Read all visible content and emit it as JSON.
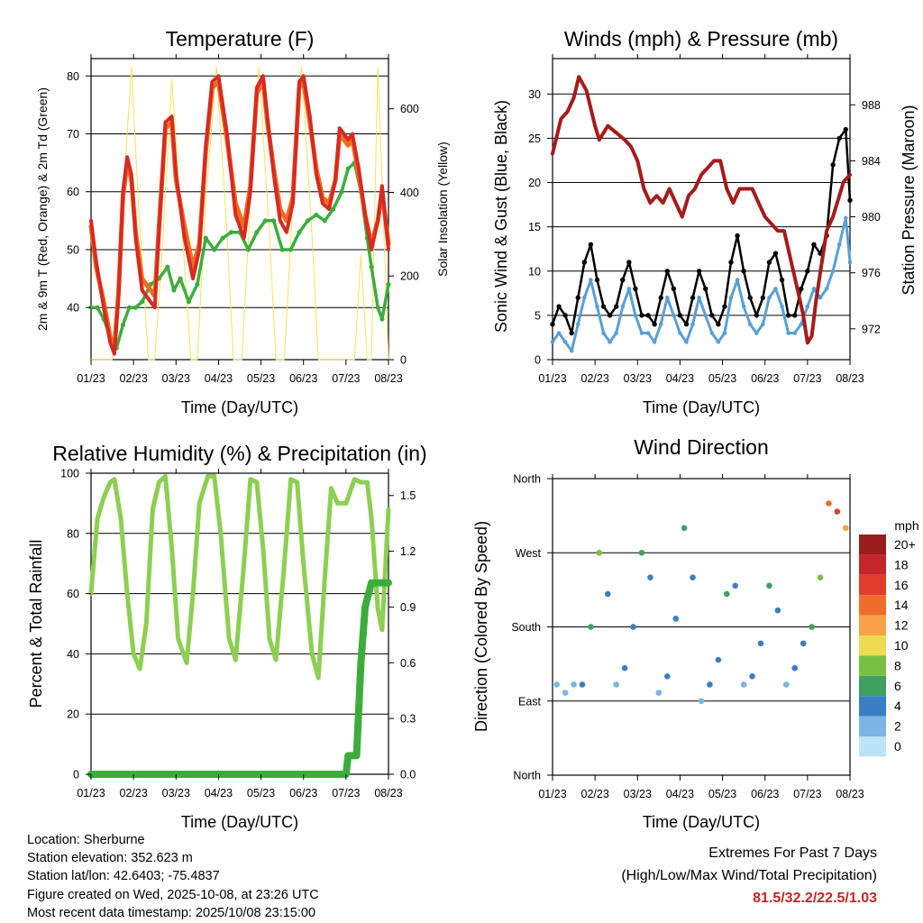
{
  "colors": {
    "temp_2m": "#d72a22",
    "temp_9m": "#f26b1d",
    "dewpoint": "#3cad3c",
    "solar": "#f2e45a",
    "wind": "#5a9fd6",
    "gust": "#000000",
    "pressure": "#a61b1b",
    "rh": "#8ccf52",
    "rain": "#3cad3c",
    "extremes": "#c0282a"
  },
  "speed_scale": {
    "title": "mph",
    "labels": [
      "20+",
      "18",
      "16",
      "14",
      "12",
      "10",
      "8",
      "6",
      "4",
      "2",
      "0"
    ],
    "colors": [
      "#9b1c1c",
      "#c4262a",
      "#e23d2b",
      "#f06c2a",
      "#f8a247",
      "#eddc52",
      "#78c043",
      "#40a062",
      "#3a7fc1",
      "#7cb5e3",
      "#bde3f6"
    ]
  },
  "info": {
    "location": "Location: Sherburne",
    "elevation": "Station elevation: 352.623 m",
    "latlon": "Station lat/lon: 42.6403; -75.4837",
    "created": "Figure created on Wed, 2025-10-08, at 23:26 UTC",
    "timestamp": "Most recent data timestamp: 2025/10/08 23:15:00"
  },
  "extremes": {
    "title": "Extremes For Past 7 Days",
    "subtitle": "(High/Low/Max Wind/Total Precipitation)",
    "values": "81.5/32.2/22.5/1.03"
  },
  "chart_data": [
    {
      "id": "temperature",
      "type": "line",
      "title": "Temperature (F)",
      "xlabel": "Time (Day/UTC)",
      "ylabel": "2m & 9m T (Red, Orange) & 2m Td (Green)",
      "ylabel_right": "Solar Insolation (Yellow)",
      "x_ticks": [
        "01/23",
        "02/23",
        "03/23",
        "04/23",
        "05/23",
        "06/23",
        "07/23",
        "08/23"
      ],
      "xlim": [
        0,
        7
      ],
      "ylim": [
        31,
        83
      ],
      "y_ticks": [
        40,
        50,
        60,
        70,
        80
      ],
      "ylim_right": [
        0,
        720
      ],
      "y_ticks_right": [
        0,
        200,
        400,
        600
      ],
      "series": [
        {
          "name": "2m T",
          "color_key": "temp_2m",
          "x": [
            0,
            0.12,
            0.3,
            0.45,
            0.55,
            0.65,
            0.75,
            0.85,
            0.95,
            1.05,
            1.2,
            1.4,
            1.5,
            1.6,
            1.75,
            1.9,
            2.0,
            2.2,
            2.4,
            2.55,
            2.7,
            2.85,
            3.0,
            3.2,
            3.4,
            3.6,
            3.75,
            3.9,
            4.05,
            4.15,
            4.3,
            4.45,
            4.6,
            4.75,
            4.9,
            5.0,
            5.15,
            5.3,
            5.45,
            5.6,
            5.75,
            5.85,
            5.95,
            6.05,
            6.15,
            6.3,
            6.45,
            6.6,
            6.75,
            6.85,
            7.0
          ],
          "values": [
            55,
            48,
            40,
            34,
            32,
            42,
            60,
            66,
            63,
            52,
            43,
            41,
            40,
            53,
            72,
            73,
            63,
            52,
            45,
            50,
            68,
            79,
            80,
            70,
            56,
            52,
            60,
            78,
            80,
            73,
            63,
            55,
            53,
            58,
            79,
            80,
            73,
            63,
            58,
            57,
            62,
            71,
            70,
            69,
            70,
            64,
            56,
            50,
            55,
            61,
            50
          ]
        },
        {
          "name": "9m T",
          "color_key": "temp_9m",
          "x": [
            0,
            0.12,
            0.3,
            0.45,
            0.55,
            0.65,
            0.75,
            0.85,
            0.95,
            1.05,
            1.2,
            1.4,
            1.5,
            1.6,
            1.75,
            1.9,
            2.0,
            2.2,
            2.4,
            2.55,
            2.7,
            2.85,
            3.0,
            3.2,
            3.4,
            3.6,
            3.75,
            3.9,
            4.05,
            4.15,
            4.3,
            4.45,
            4.6,
            4.75,
            4.9,
            5.0,
            5.15,
            5.3,
            5.45,
            5.6,
            5.75,
            5.85,
            5.95,
            6.05,
            6.15,
            6.3,
            6.45,
            6.6,
            6.75,
            6.85,
            7.0
          ],
          "values": [
            54,
            47,
            41,
            35,
            33,
            43,
            59,
            65,
            62,
            53,
            45,
            43,
            42,
            54,
            71,
            72,
            62,
            54,
            47,
            51,
            67,
            78,
            79,
            69,
            58,
            54,
            61,
            77,
            79,
            72,
            64,
            57,
            55,
            59,
            78,
            79,
            72,
            64,
            59,
            58,
            62,
            70,
            69,
            68,
            69,
            63,
            56,
            51,
            55,
            60,
            51
          ]
        },
        {
          "name": "2m Td",
          "color_key": "dewpoint",
          "x": [
            0,
            0.15,
            0.3,
            0.45,
            0.6,
            0.75,
            0.9,
            1.05,
            1.2,
            1.4,
            1.6,
            1.8,
            1.95,
            2.1,
            2.3,
            2.5,
            2.7,
            2.9,
            3.1,
            3.3,
            3.5,
            3.7,
            3.9,
            4.1,
            4.3,
            4.5,
            4.7,
            4.9,
            5.1,
            5.3,
            5.5,
            5.7,
            5.9,
            6.05,
            6.2,
            6.35,
            6.5,
            6.6,
            6.75,
            6.85,
            7.0
          ],
          "values": [
            40,
            40,
            38,
            35,
            33,
            37,
            40,
            40,
            41,
            44,
            45,
            47,
            43,
            45,
            41,
            44,
            52,
            50,
            52,
            53,
            53,
            50,
            53,
            55,
            55,
            50,
            50,
            53,
            55,
            56,
            55,
            57,
            60,
            64,
            65,
            60,
            52,
            47,
            40,
            38,
            44
          ]
        },
        {
          "name": "Solar Insolation",
          "color_key": "solar",
          "x": [
            0,
            0.5,
            0.7,
            0.95,
            1.1,
            1.35,
            1.5,
            1.7,
            1.9,
            2.15,
            2.35,
            2.5,
            2.7,
            2.95,
            3.2,
            3.35,
            3.55,
            3.75,
            3.95,
            4.2,
            4.35,
            4.55,
            4.75,
            4.95,
            5.2,
            5.35,
            5.55,
            5.75,
            5.95,
            6.2,
            6.35,
            6.5,
            6.6,
            6.75,
            7.0
          ],
          "values": [
            0,
            0,
            300,
            700,
            400,
            0,
            0,
            300,
            670,
            300,
            0,
            0,
            380,
            700,
            300,
            0,
            0,
            380,
            700,
            300,
            0,
            0,
            380,
            700,
            300,
            0,
            0,
            0,
            0,
            0,
            250,
            0,
            0,
            700,
            0
          ]
        }
      ]
    },
    {
      "id": "winds",
      "type": "scatter",
      "title": "Winds (mph) & Pressure (mb)",
      "xlabel": "Time (Day/UTC)",
      "ylabel": "Sonic Wind & Gust (Blue, Black)",
      "ylabel_right": "Station Pressure (Maroon)",
      "x_ticks": [
        "01/23",
        "02/23",
        "03/23",
        "04/23",
        "05/23",
        "06/23",
        "07/23",
        "08/23"
      ],
      "xlim": [
        0,
        7
      ],
      "ylim": [
        0,
        34
      ],
      "y_ticks": [
        0,
        5,
        10,
        15,
        20,
        25,
        30
      ],
      "ylim_right": [
        969.8,
        991.3
      ],
      "y_ticks_right": [
        972,
        976,
        980,
        984,
        988
      ],
      "series": [
        {
          "name": "Sonic Wind",
          "color_key": "wind",
          "x": [
            0,
            0.15,
            0.3,
            0.45,
            0.6,
            0.75,
            0.9,
            1.05,
            1.2,
            1.35,
            1.5,
            1.65,
            1.8,
            1.95,
            2.1,
            2.25,
            2.4,
            2.55,
            2.7,
            2.85,
            3.0,
            3.15,
            3.3,
            3.45,
            3.6,
            3.75,
            3.9,
            4.05,
            4.2,
            4.35,
            4.5,
            4.65,
            4.8,
            4.95,
            5.1,
            5.25,
            5.4,
            5.55,
            5.7,
            5.85,
            6.0,
            6.15,
            6.3,
            6.45,
            6.6,
            6.75,
            6.9,
            7.0
          ],
          "values": [
            2,
            3,
            2,
            1,
            4,
            7,
            9,
            6,
            3,
            2,
            3,
            6,
            8,
            5,
            3,
            3,
            2,
            4,
            7,
            5,
            3,
            2,
            4,
            7,
            5,
            3,
            2,
            3,
            7,
            9,
            6,
            4,
            3,
            4,
            7,
            8,
            6,
            3,
            3,
            4,
            6,
            8,
            7,
            8,
            10,
            13,
            16,
            11
          ]
        },
        {
          "name": "Gust",
          "color_key": "gust",
          "x": [
            0,
            0.15,
            0.3,
            0.45,
            0.6,
            0.75,
            0.9,
            1.05,
            1.2,
            1.35,
            1.5,
            1.65,
            1.8,
            1.95,
            2.1,
            2.25,
            2.4,
            2.55,
            2.7,
            2.85,
            3.0,
            3.15,
            3.3,
            3.45,
            3.6,
            3.75,
            3.9,
            4.05,
            4.2,
            4.35,
            4.5,
            4.65,
            4.8,
            4.95,
            5.1,
            5.25,
            5.4,
            5.55,
            5.7,
            5.85,
            6.0,
            6.15,
            6.3,
            6.45,
            6.6,
            6.75,
            6.9,
            7.0
          ],
          "values": [
            4,
            6,
            5,
            3,
            7,
            11,
            13,
            9,
            6,
            5,
            6,
            9,
            11,
            8,
            5,
            5,
            4,
            7,
            10,
            8,
            5,
            4,
            7,
            10,
            8,
            5,
            4,
            6,
            11,
            14,
            10,
            7,
            5,
            7,
            11,
            12,
            9,
            5,
            5,
            8,
            10,
            13,
            12,
            14,
            22,
            25,
            26,
            18
          ]
        },
        {
          "name": "Station Pressure",
          "color_key": "pressure",
          "x": [
            0,
            0.2,
            0.35,
            0.5,
            0.62,
            0.8,
            1.0,
            1.1,
            1.3,
            1.5,
            1.7,
            1.85,
            2.0,
            2.15,
            2.3,
            2.45,
            2.6,
            2.75,
            2.9,
            3.05,
            3.2,
            3.35,
            3.5,
            3.65,
            3.8,
            3.95,
            4.1,
            4.25,
            4.4,
            4.55,
            4.7,
            4.85,
            5.0,
            5.15,
            5.3,
            5.45,
            5.6,
            5.75,
            5.9,
            6.0,
            6.1,
            6.2,
            6.3,
            6.45,
            6.6,
            6.75,
            6.85,
            7.0
          ],
          "values": [
            984.5,
            987,
            987.5,
            988.5,
            990,
            989,
            986.5,
            985.5,
            986.5,
            986,
            985.5,
            985,
            984,
            982,
            981,
            981.5,
            981,
            982,
            981,
            980,
            981.5,
            982,
            983,
            983.5,
            984,
            984,
            982,
            981,
            982,
            982,
            982,
            981,
            980,
            979.5,
            979,
            979,
            977,
            975,
            973,
            971,
            971.5,
            974,
            976,
            979,
            980,
            981.5,
            982.5,
            983
          ]
        }
      ]
    },
    {
      "id": "humidity",
      "type": "line",
      "title": "Relative Humidity (%) & Precipitation (in)",
      "xlabel": "Time (Day/UTC)",
      "ylabel": "Percent & Total Rainfall",
      "x_ticks": [
        "01/23",
        "02/23",
        "03/23",
        "04/23",
        "05/23",
        "06/23",
        "07/23",
        "08/23"
      ],
      "xlim": [
        0,
        7
      ],
      "ylim": [
        0,
        100
      ],
      "y_ticks": [
        0,
        20,
        40,
        60,
        80,
        100
      ],
      "ylim_right": [
        0,
        1.62
      ],
      "y_ticks_right": [
        0.0,
        0.3,
        0.6,
        0.9,
        1.2,
        1.5
      ],
      "series": [
        {
          "name": "Relative Humidity",
          "color_key": "rh",
          "x": [
            0,
            0.15,
            0.3,
            0.45,
            0.55,
            0.7,
            0.85,
            1.0,
            1.15,
            1.3,
            1.45,
            1.6,
            1.75,
            1.9,
            2.05,
            2.25,
            2.4,
            2.55,
            2.75,
            2.9,
            3.05,
            3.25,
            3.4,
            3.6,
            3.75,
            3.9,
            4.05,
            4.2,
            4.35,
            4.55,
            4.7,
            4.85,
            5.0,
            5.2,
            5.35,
            5.5,
            5.65,
            5.8,
            6.0,
            6.2,
            6.35,
            6.5,
            6.6,
            6.75,
            6.85,
            7.0
          ],
          "values": [
            60,
            85,
            92,
            97,
            98,
            85,
            60,
            40,
            35,
            50,
            88,
            97,
            99,
            75,
            45,
            37,
            60,
            90,
            99,
            99,
            80,
            45,
            38,
            70,
            98,
            97,
            75,
            45,
            38,
            70,
            98,
            97,
            70,
            40,
            32,
            65,
            95,
            90,
            90,
            98,
            97,
            97,
            85,
            55,
            48,
            88
          ]
        },
        {
          "name": "Total Rainfall",
          "color_key": "rain",
          "x": [
            0,
            6.0,
            6.05,
            6.25,
            6.35,
            6.45,
            6.6,
            6.7,
            7.0
          ],
          "values": [
            0,
            0,
            0.1,
            0.1,
            0.6,
            0.9,
            1.03,
            1.03,
            1.03
          ]
        }
      ]
    },
    {
      "id": "direction",
      "type": "scatter",
      "title": "Wind Direction",
      "xlabel": "Time (Day/UTC)",
      "ylabel": "Direction (Colored By Speed)",
      "x_ticks": [
        "01/23",
        "02/23",
        "03/23",
        "04/23",
        "05/23",
        "06/23",
        "07/23",
        "08/23"
      ],
      "xlim": [
        0,
        7
      ],
      "ylim": [
        0,
        360
      ],
      "y_tick_labels": [
        "North",
        "East",
        "South",
        "West",
        "North"
      ],
      "y_ticks": [
        0,
        90,
        180,
        270,
        360
      ],
      "series": [
        {
          "name": "Direction",
          "x": [
            0.1,
            0.3,
            0.5,
            0.7,
            0.9,
            1.1,
            1.3,
            1.5,
            1.7,
            1.9,
            2.1,
            2.3,
            2.5,
            2.7,
            2.9,
            3.1,
            3.3,
            3.5,
            3.7,
            3.9,
            4.1,
            4.3,
            4.5,
            4.7,
            4.9,
            5.1,
            5.3,
            5.5,
            5.7,
            5.9,
            6.1,
            6.3,
            6.5,
            6.7,
            6.9
          ],
          "values": [
            110,
            100,
            110,
            110,
            180,
            270,
            220,
            110,
            130,
            180,
            270,
            240,
            100,
            120,
            190,
            300,
            240,
            90,
            110,
            140,
            220,
            230,
            110,
            120,
            160,
            230,
            200,
            110,
            130,
            160,
            180,
            240,
            330,
            320,
            300
          ],
          "speeds": [
            2,
            3,
            3,
            4,
            6,
            8,
            5,
            3,
            4,
            5,
            7,
            5,
            3,
            4,
            4,
            6,
            4,
            3,
            4,
            4,
            6,
            5,
            3,
            4,
            4,
            6,
            4,
            3,
            4,
            5,
            7,
            9,
            14,
            16,
            13
          ]
        }
      ]
    }
  ]
}
